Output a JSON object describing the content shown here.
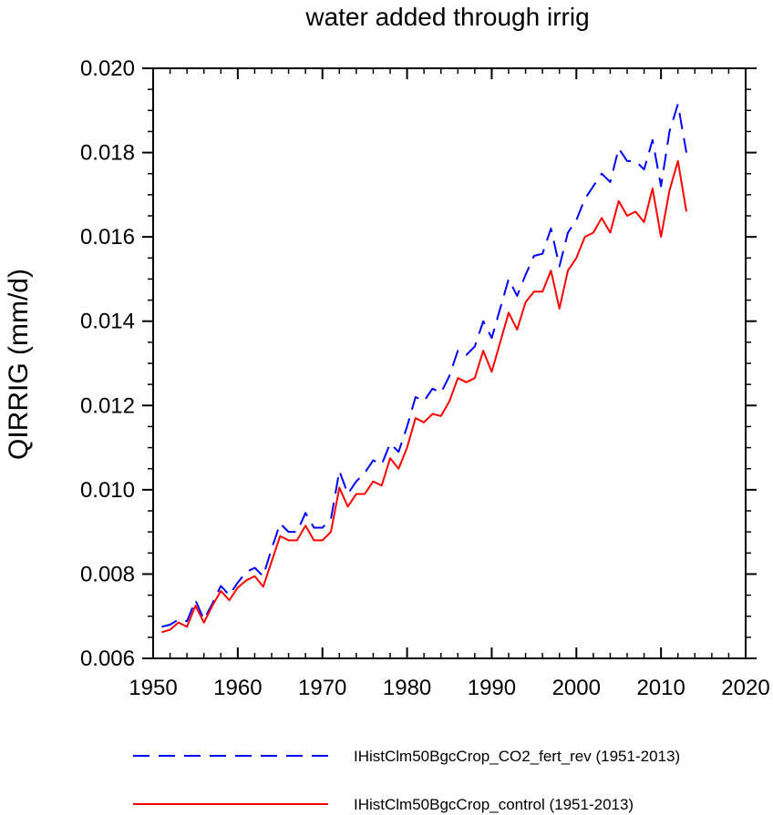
{
  "chart_data": {
    "type": "line",
    "title": "water added through irrig",
    "xlabel": "",
    "ylabel": "QIRRIG  (mm/d)",
    "xlim": [
      1950,
      2020
    ],
    "ylim": [
      0.006,
      0.02
    ],
    "x_ticks": [
      1950,
      1960,
      1970,
      1980,
      1990,
      2000,
      2010,
      2020
    ],
    "y_ticks": [
      0.006,
      0.008,
      0.01,
      0.012,
      0.014,
      0.016,
      0.018,
      0.02
    ],
    "x_tick_labels": [
      "1950",
      "1960",
      "1970",
      "1980",
      "1990",
      "2000",
      "2010",
      "2020"
    ],
    "y_tick_labels": [
      "0.006",
      "0.008",
      "0.010",
      "0.012",
      "0.014",
      "0.016",
      "0.018",
      "0.020"
    ],
    "grid": false,
    "legend_position": "bottom",
    "x": [
      1951,
      1952,
      1953,
      1954,
      1955,
      1956,
      1957,
      1958,
      1959,
      1960,
      1961,
      1962,
      1963,
      1964,
      1965,
      1966,
      1967,
      1968,
      1969,
      1970,
      1971,
      1972,
      1973,
      1974,
      1975,
      1976,
      1977,
      1978,
      1979,
      1980,
      1981,
      1982,
      1983,
      1984,
      1985,
      1986,
      1987,
      1988,
      1989,
      1990,
      1991,
      1992,
      1993,
      1994,
      1995,
      1996,
      1997,
      1998,
      1999,
      2000,
      2001,
      2002,
      2003,
      2004,
      2005,
      2006,
      2007,
      2008,
      2009,
      2010,
      2011,
      2012,
      2013
    ],
    "series": [
      {
        "name": "IHistClm50BgcCrop_CO2_fert_rev (1951-2013)",
        "color": "#0000ff",
        "dash": "dashed",
        "values": [
          0.00675,
          0.0068,
          0.00692,
          0.00688,
          0.00738,
          0.00692,
          0.0073,
          0.00772,
          0.0075,
          0.0078,
          0.00805,
          0.00815,
          0.00795,
          0.0086,
          0.0092,
          0.009,
          0.009,
          0.00945,
          0.0091,
          0.0091,
          0.0093,
          0.01045,
          0.0099,
          0.0102,
          0.0104,
          0.0107,
          0.0106,
          0.0111,
          0.0109,
          0.0115,
          0.0122,
          0.0121,
          0.0124,
          0.0123,
          0.0127,
          0.0133,
          0.0132,
          0.0134,
          0.014,
          0.0136,
          0.0143,
          0.015,
          0.0146,
          0.0151,
          0.01555,
          0.0156,
          0.0162,
          0.0153,
          0.0161,
          0.0164,
          0.0169,
          0.0172,
          0.0175,
          0.0173,
          0.0181,
          0.0178,
          0.0178,
          0.0176,
          0.0183,
          0.0172,
          0.0185,
          0.01915,
          0.018
        ]
      },
      {
        "name": "IHistClm50BgcCrop_control (1951-2013)",
        "color": "#ff0000",
        "dash": "solid",
        "values": [
          0.00662,
          0.00668,
          0.00685,
          0.00675,
          0.00725,
          0.00685,
          0.00725,
          0.0076,
          0.00738,
          0.00768,
          0.00785,
          0.00795,
          0.0077,
          0.0083,
          0.0089,
          0.0088,
          0.0088,
          0.00915,
          0.0088,
          0.0088,
          0.009,
          0.01005,
          0.0096,
          0.0099,
          0.0099,
          0.0102,
          0.0101,
          0.01075,
          0.0105,
          0.011,
          0.0117,
          0.0116,
          0.0118,
          0.01175,
          0.0121,
          0.01265,
          0.01255,
          0.01265,
          0.0133,
          0.0128,
          0.0135,
          0.0142,
          0.0138,
          0.01445,
          0.0147,
          0.0147,
          0.0152,
          0.0143,
          0.0152,
          0.0155,
          0.016,
          0.0161,
          0.01645,
          0.0161,
          0.01685,
          0.0165,
          0.0166,
          0.01635,
          0.01715,
          0.016,
          0.0171,
          0.0178,
          0.0166
        ]
      }
    ]
  }
}
